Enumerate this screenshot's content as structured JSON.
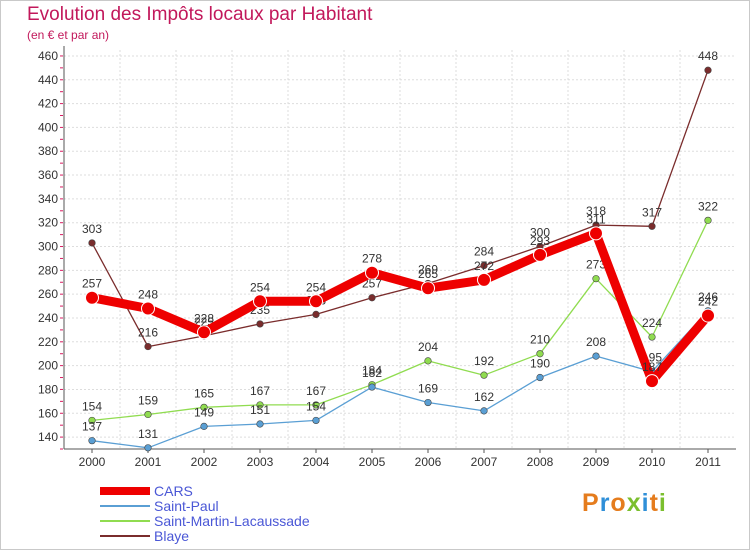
{
  "title": "Evolution des Impôts locaux par Habitant",
  "subtitle": "(en € et par an)",
  "logo": {
    "text": "Proxiti",
    "colors": [
      "#e57c1d",
      "#2f8fd8",
      "#e57c1d",
      "#7bbf2e",
      "#2f8fd8",
      "#e57c1d",
      "#7bbf2e"
    ]
  },
  "chart_data": {
    "type": "line",
    "title": "Evolution des Impôts locaux par Habitant",
    "subtitle": "(en € et par an)",
    "xlabel": "",
    "ylabel": "",
    "categories": [
      "2000",
      "2001",
      "2002",
      "2003",
      "2004",
      "2005",
      "2006",
      "2007",
      "2008",
      "2009",
      "2010",
      "2011"
    ],
    "ylim": [
      130,
      465
    ],
    "yticks": [
      140,
      160,
      180,
      200,
      220,
      240,
      260,
      280,
      300,
      320,
      340,
      360,
      380,
      400,
      420,
      440,
      460
    ],
    "grid": true,
    "legend_position": "bottom-left",
    "series": [
      {
        "name": "CARS",
        "color": "#ee0000",
        "values": [
          257,
          248,
          228,
          254,
          254,
          278,
          265,
          272,
          293,
          311,
          187,
          242
        ],
        "labels": [
          "257",
          "248",
          "228",
          "254",
          "254",
          "278",
          "265",
          "272",
          "293",
          "311",
          "187",
          "242"
        ]
      },
      {
        "name": "Saint-Paul",
        "color": "#5a9fd4",
        "values": [
          137,
          131,
          149,
          151,
          154,
          182,
          169,
          162,
          190,
          208,
          195,
          246
        ],
        "labels": [
          "137",
          "131",
          "149",
          "151",
          "154",
          "182",
          "169",
          "162",
          "190",
          "208",
          "195",
          "246"
        ]
      },
      {
        "name": "Saint-Martin-Lacaussade",
        "color": "#90dc50",
        "values": [
          154,
          159,
          165,
          167,
          167,
          184,
          204,
          192,
          210,
          273,
          224,
          322
        ],
        "labels": [
          "154",
          "159",
          "165",
          "167",
          "167",
          "184",
          "204",
          "192",
          "210",
          "273",
          "224",
          "322"
        ]
      },
      {
        "name": "Blaye",
        "color": "#7a2c2c",
        "values": [
          303,
          216,
          225,
          235,
          243,
          257,
          269,
          284,
          300,
          318,
          317,
          448
        ],
        "labels": [
          "303",
          "216",
          "225",
          "235",
          "243",
          "257",
          "269",
          "284",
          "300",
          "318",
          "317",
          "448"
        ]
      }
    ]
  }
}
